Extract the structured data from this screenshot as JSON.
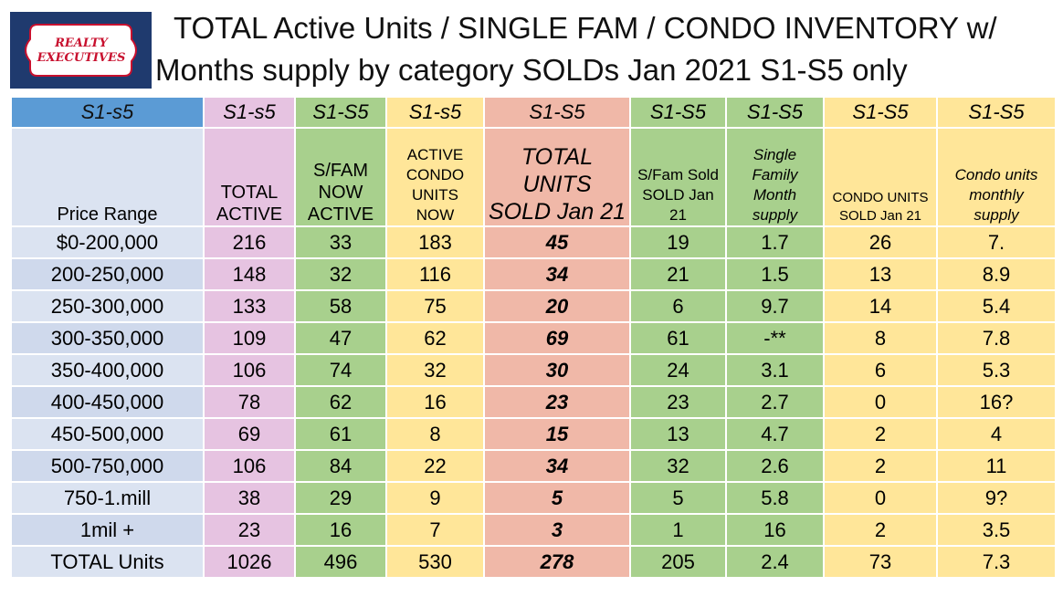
{
  "logo": {
    "line1": "REALTY",
    "line2": "EXECUTIVES"
  },
  "title": {
    "line1": "TOTAL Active Units / SINGLE FAM / CONDO    INVENTORY w/",
    "line2": "Months supply by category SOLDs  Jan  2021  S1-S5 only"
  },
  "colors": {
    "header_blue": "#5b9bd5",
    "pink": "#e6c3e1",
    "green": "#a8d08d",
    "yellow": "#ffe699",
    "salmon": "#f0b8a8",
    "label_blue": "#dbe3f1"
  },
  "table": {
    "header_row": [
      "S1-s5",
      "S1-s5",
      "S1-S5",
      "S1-s5",
      "S1-S5",
      "S1-S5",
      "S1-S5",
      "S1-S5",
      "S1-S5"
    ],
    "subheaders": {
      "price_range": "Price Range",
      "total_active": [
        "TOTAL",
        "ACTIVE"
      ],
      "sfam_active": [
        "S/FAM",
        "NOW",
        "ACTIVE"
      ],
      "condo_active": [
        "ACTIVE",
        "CONDO",
        "UNITS",
        "NOW"
      ],
      "total_sold": [
        "TOTAL UNITS",
        "SOLD Jan 21"
      ],
      "sfam_sold": [
        "S/Fam Sold",
        "SOLD Jan",
        "21"
      ],
      "sf_supply": [
        "Single",
        "Family",
        "Month",
        "supply"
      ],
      "condo_sold": [
        "CONDO UNITS",
        "SOLD Jan 21"
      ],
      "condo_supply": [
        "Condo units",
        "monthly",
        "supply"
      ]
    },
    "rows": [
      {
        "range": "$0-200,000",
        "total_active": "216",
        "sfam_active": "33",
        "condo_active": "183",
        "total_sold": "45",
        "sfam_sold": "19",
        "sf_supply": "1.7",
        "condo_sold": "26",
        "condo_supply": "7."
      },
      {
        "range": "200-250,000",
        "total_active": "148",
        "sfam_active": "32",
        "condo_active": "116",
        "total_sold": "34",
        "sfam_sold": "21",
        "sf_supply": "1.5",
        "condo_sold": "13",
        "condo_supply": "8.9"
      },
      {
        "range": "250-300,000",
        "total_active": "133",
        "sfam_active": "58",
        "condo_active": "75",
        "total_sold": "20",
        "sfam_sold": "6",
        "sf_supply": "9.7",
        "condo_sold": "14",
        "condo_supply": "5.4"
      },
      {
        "range": "300-350,000",
        "total_active": "109",
        "sfam_active": "47",
        "condo_active": "62",
        "total_sold": "69",
        "sfam_sold": "61",
        "sf_supply": "-**",
        "condo_sold": "8",
        "condo_supply": "7.8"
      },
      {
        "range": "350-400,000",
        "total_active": "106",
        "sfam_active": "74",
        "condo_active": "32",
        "total_sold": "30",
        "sfam_sold": "24",
        "sf_supply": "3.1",
        "condo_sold": "6",
        "condo_supply": "5.3"
      },
      {
        "range": "400-450,000",
        "total_active": "78",
        "sfam_active": "62",
        "condo_active": "16",
        "total_sold": "23",
        "sfam_sold": "23",
        "sf_supply": "2.7",
        "condo_sold": "0",
        "condo_supply": "16?"
      },
      {
        "range": "450-500,000",
        "total_active": "69",
        "sfam_active": "61",
        "condo_active": "8",
        "total_sold": "15",
        "sfam_sold": "13",
        "sf_supply": "4.7",
        "condo_sold": "2",
        "condo_supply": "4"
      },
      {
        "range": "500-750,000",
        "total_active": "106",
        "sfam_active": "84",
        "condo_active": "22",
        "total_sold": "34",
        "sfam_sold": "32",
        "sf_supply": "2.6",
        "condo_sold": "2",
        "condo_supply": "11"
      },
      {
        "range": "750-1.mill",
        "total_active": "38",
        "sfam_active": "29",
        "condo_active": "9",
        "total_sold": "5",
        "sfam_sold": "5",
        "sf_supply": "5.8",
        "condo_sold": "0",
        "condo_supply": "9?"
      },
      {
        "range": "1mil +",
        "total_active": "23",
        "sfam_active": "16",
        "condo_active": "7",
        "total_sold": "3",
        "sfam_sold": "1",
        "sf_supply": "16",
        "condo_sold": "2",
        "condo_supply": "3.5"
      },
      {
        "range": "TOTAL Units",
        "total_active": "1026",
        "sfam_active": "496",
        "condo_active": "530",
        "total_sold": "278",
        "sfam_sold": "205",
        "sf_supply": "2.4",
        "condo_sold": "73",
        "condo_supply": "7.3"
      }
    ]
  }
}
